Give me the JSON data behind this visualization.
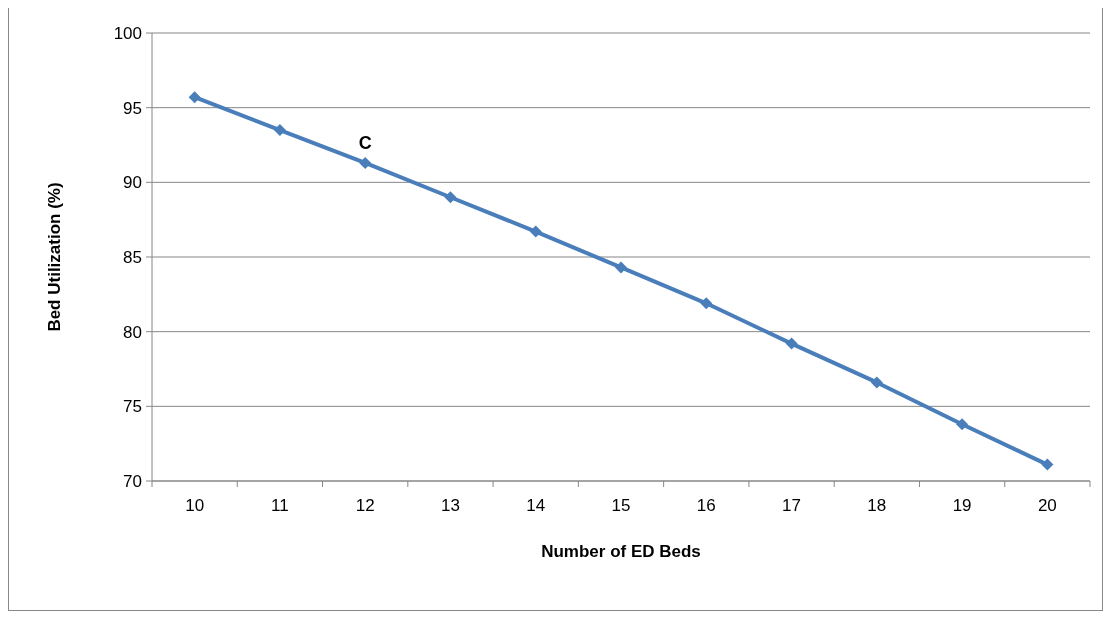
{
  "chart_data": {
    "type": "line",
    "xlabel": "Number of ED Beds",
    "ylabel": "Bed Utilization (%)",
    "categories": [
      "10",
      "11",
      "12",
      "13",
      "14",
      "15",
      "16",
      "17",
      "18",
      "19",
      "20"
    ],
    "series": [
      {
        "color": "#4a7ebb",
        "values": [
          95.7,
          93.5,
          91.3,
          89.0,
          86.7,
          84.3,
          81.9,
          79.2,
          76.6,
          73.8,
          71.1
        ]
      }
    ],
    "ylim": [
      70,
      100
    ],
    "yticks": [
      70,
      75,
      80,
      85,
      90,
      95,
      100
    ],
    "grid": "y",
    "marker": "diamond",
    "line_style": "solid",
    "annotations": [
      {
        "text": "C",
        "x": "12",
        "y": 91.3
      }
    ]
  }
}
